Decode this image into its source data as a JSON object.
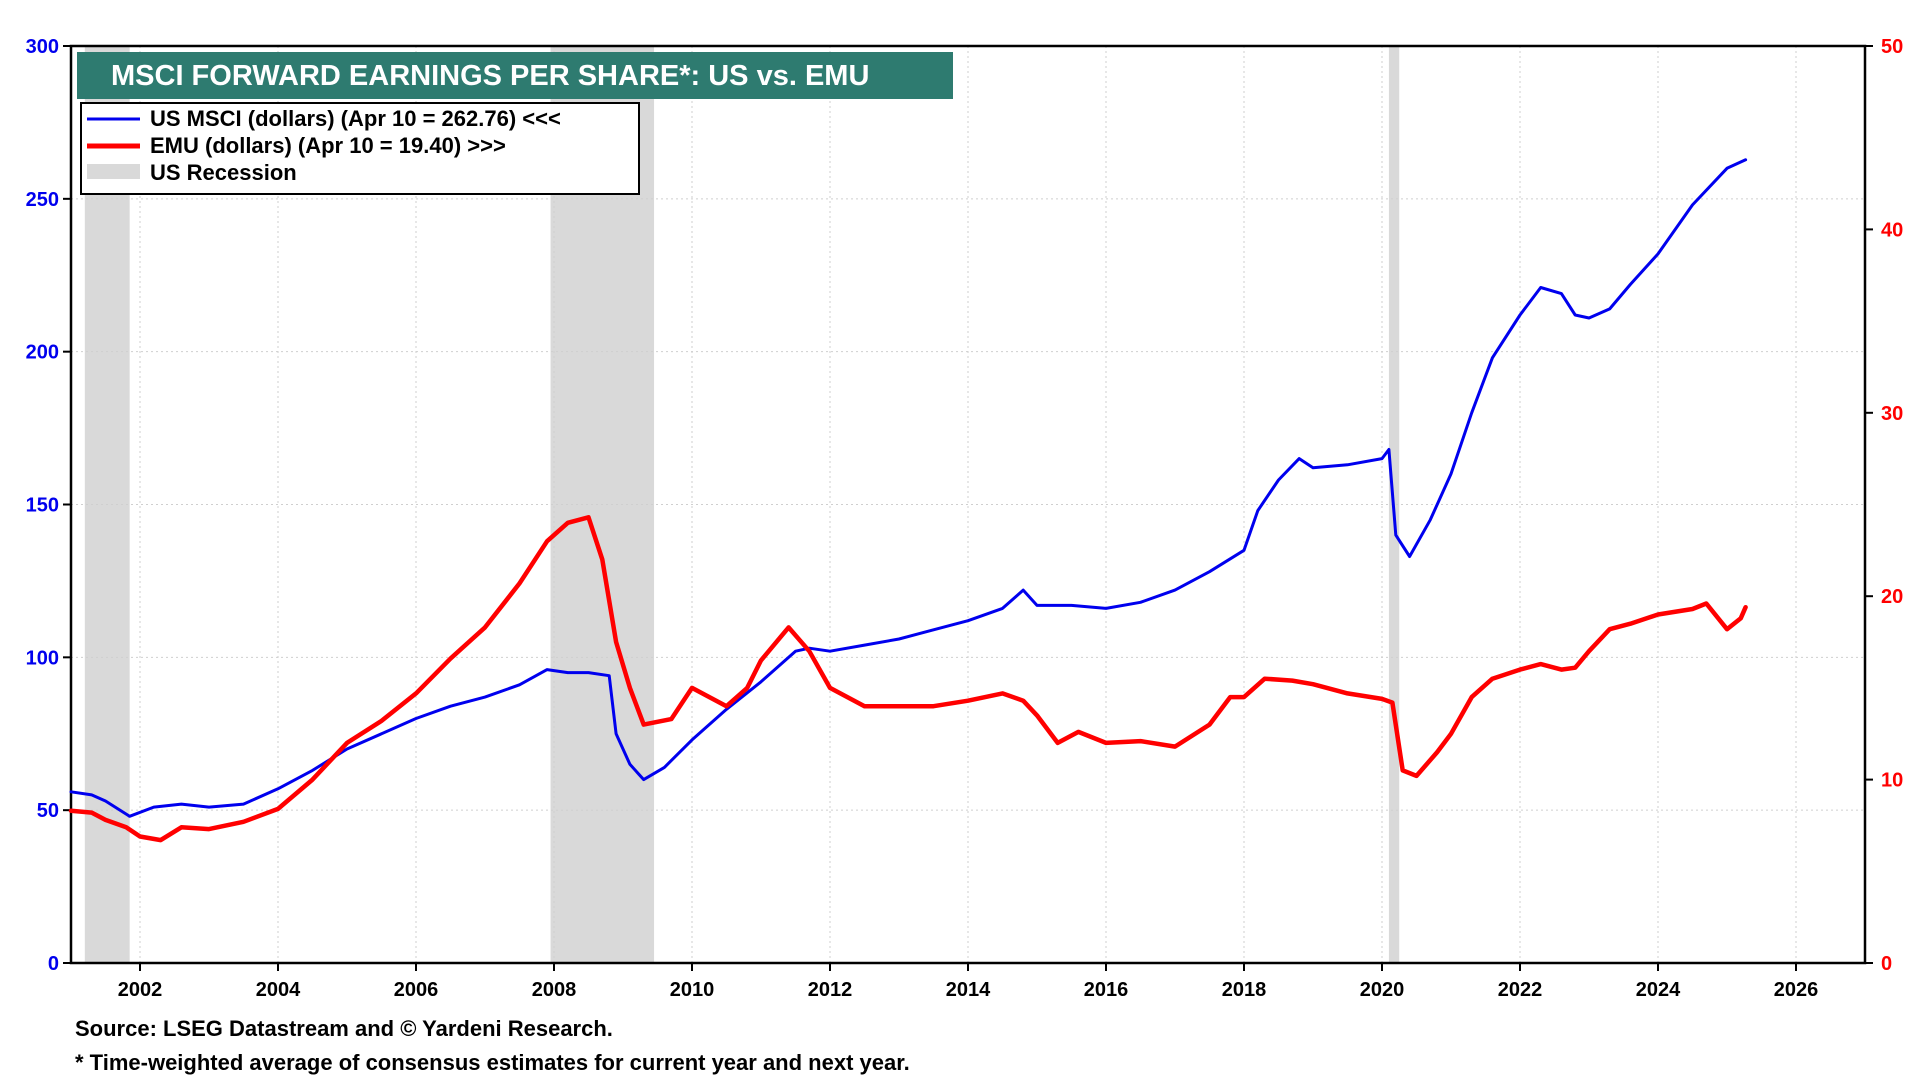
{
  "chart_data": {
    "type": "line",
    "title": "MSCI FORWARD EARNINGS PER SHARE*: US vs. EMU",
    "x_range": [
      2001.0,
      2027.0
    ],
    "x_ticks": [
      2002,
      2004,
      2006,
      2008,
      2010,
      2012,
      2014,
      2016,
      2018,
      2020,
      2022,
      2024,
      2026
    ],
    "y_left": {
      "min": 0,
      "max": 300,
      "ticks": [
        0,
        50,
        100,
        150,
        200,
        250,
        300
      ],
      "color": "#0000ee"
    },
    "y_right": {
      "min": 0,
      "max": 50,
      "ticks": [
        0,
        10,
        20,
        30,
        40,
        50
      ],
      "color": "#ff0000"
    },
    "recessions": [
      [
        2001.2,
        2001.85
      ],
      [
        2007.95,
        2009.45
      ],
      [
        2020.1,
        2020.25
      ]
    ],
    "legend": [
      {
        "label": "US MSCI (dollars) (Apr 10 = 262.76) <<<",
        "kind": "line",
        "color": "#0000ee"
      },
      {
        "label": "EMU (dollars) (Apr 10 = 19.40) >>>",
        "kind": "line",
        "color": "#ff0000"
      },
      {
        "label": "US Recession",
        "kind": "box",
        "color": "#d9d9d9"
      }
    ],
    "series": [
      {
        "name": "US MSCI (dollars)",
        "axis": "left",
        "color": "#0000ee",
        "points": [
          [
            2001.0,
            56
          ],
          [
            2001.3,
            55
          ],
          [
            2001.5,
            53
          ],
          [
            2001.85,
            48
          ],
          [
            2002.2,
            51
          ],
          [
            2002.6,
            52
          ],
          [
            2003.0,
            51
          ],
          [
            2003.5,
            52
          ],
          [
            2004.0,
            57
          ],
          [
            2004.5,
            63
          ],
          [
            2005.0,
            70
          ],
          [
            2005.5,
            75
          ],
          [
            2006.0,
            80
          ],
          [
            2006.5,
            84
          ],
          [
            2007.0,
            87
          ],
          [
            2007.5,
            91
          ],
          [
            2007.9,
            96
          ],
          [
            2008.2,
            95
          ],
          [
            2008.5,
            95
          ],
          [
            2008.8,
            94
          ],
          [
            2008.9,
            75
          ],
          [
            2009.1,
            65
          ],
          [
            2009.3,
            60
          ],
          [
            2009.6,
            64
          ],
          [
            2010.0,
            73
          ],
          [
            2010.5,
            83
          ],
          [
            2011.0,
            92
          ],
          [
            2011.5,
            102
          ],
          [
            2011.7,
            103
          ],
          [
            2012.0,
            102
          ],
          [
            2012.5,
            104
          ],
          [
            2013.0,
            106
          ],
          [
            2013.5,
            109
          ],
          [
            2014.0,
            112
          ],
          [
            2014.5,
            116
          ],
          [
            2014.8,
            122
          ],
          [
            2015.0,
            117
          ],
          [
            2015.5,
            117
          ],
          [
            2016.0,
            116
          ],
          [
            2016.5,
            118
          ],
          [
            2017.0,
            122
          ],
          [
            2017.5,
            128
          ],
          [
            2018.0,
            135
          ],
          [
            2018.2,
            148
          ],
          [
            2018.5,
            158
          ],
          [
            2018.8,
            165
          ],
          [
            2019.0,
            162
          ],
          [
            2019.5,
            163
          ],
          [
            2020.0,
            165
          ],
          [
            2020.1,
            168
          ],
          [
            2020.2,
            140
          ],
          [
            2020.4,
            133
          ],
          [
            2020.7,
            145
          ],
          [
            2021.0,
            160
          ],
          [
            2021.3,
            180
          ],
          [
            2021.6,
            198
          ],
          [
            2022.0,
            212
          ],
          [
            2022.3,
            221
          ],
          [
            2022.6,
            219
          ],
          [
            2022.8,
            212
          ],
          [
            2023.0,
            211
          ],
          [
            2023.3,
            214
          ],
          [
            2023.6,
            222
          ],
          [
            2024.0,
            232
          ],
          [
            2024.5,
            248
          ],
          [
            2025.0,
            260
          ],
          [
            2025.27,
            262.76
          ]
        ]
      },
      {
        "name": "EMU (dollars)",
        "axis": "right",
        "color": "#ff0000",
        "points": [
          [
            2001.0,
            8.3
          ],
          [
            2001.3,
            8.2
          ],
          [
            2001.5,
            7.8
          ],
          [
            2001.8,
            7.4
          ],
          [
            2002.0,
            6.9
          ],
          [
            2002.3,
            6.7
          ],
          [
            2002.6,
            7.4
          ],
          [
            2003.0,
            7.3
          ],
          [
            2003.5,
            7.7
          ],
          [
            2004.0,
            8.4
          ],
          [
            2004.5,
            10.0
          ],
          [
            2005.0,
            12.0
          ],
          [
            2005.5,
            13.2
          ],
          [
            2006.0,
            14.7
          ],
          [
            2006.5,
            16.6
          ],
          [
            2007.0,
            18.3
          ],
          [
            2007.5,
            20.7
          ],
          [
            2007.9,
            23.0
          ],
          [
            2008.2,
            24.0
          ],
          [
            2008.5,
            24.3
          ],
          [
            2008.7,
            22.0
          ],
          [
            2008.9,
            17.5
          ],
          [
            2009.1,
            15.0
          ],
          [
            2009.3,
            13.0
          ],
          [
            2009.7,
            13.3
          ],
          [
            2010.0,
            15.0
          ],
          [
            2010.5,
            14.0
          ],
          [
            2010.8,
            15.0
          ],
          [
            2011.0,
            16.5
          ],
          [
            2011.4,
            18.3
          ],
          [
            2011.7,
            17.0
          ],
          [
            2012.0,
            15.0
          ],
          [
            2012.5,
            14.0
          ],
          [
            2013.0,
            14.0
          ],
          [
            2013.5,
            14.0
          ],
          [
            2014.0,
            14.3
          ],
          [
            2014.5,
            14.7
          ],
          [
            2014.8,
            14.3
          ],
          [
            2015.0,
            13.5
          ],
          [
            2015.3,
            12.0
          ],
          [
            2015.6,
            12.6
          ],
          [
            2016.0,
            12.0
          ],
          [
            2016.5,
            12.1
          ],
          [
            2017.0,
            11.8
          ],
          [
            2017.5,
            13.0
          ],
          [
            2017.8,
            14.5
          ],
          [
            2018.0,
            14.5
          ],
          [
            2018.3,
            15.5
          ],
          [
            2018.7,
            15.4
          ],
          [
            2019.0,
            15.2
          ],
          [
            2019.5,
            14.7
          ],
          [
            2020.0,
            14.4
          ],
          [
            2020.15,
            14.2
          ],
          [
            2020.3,
            10.5
          ],
          [
            2020.5,
            10.2
          ],
          [
            2020.8,
            11.5
          ],
          [
            2021.0,
            12.5
          ],
          [
            2021.3,
            14.5
          ],
          [
            2021.6,
            15.5
          ],
          [
            2022.0,
            16.0
          ],
          [
            2022.3,
            16.3
          ],
          [
            2022.6,
            16.0
          ],
          [
            2022.8,
            16.1
          ],
          [
            2023.0,
            17.0
          ],
          [
            2023.3,
            18.2
          ],
          [
            2023.6,
            18.5
          ],
          [
            2024.0,
            19.0
          ],
          [
            2024.5,
            19.3
          ],
          [
            2024.7,
            19.6
          ],
          [
            2025.0,
            18.2
          ],
          [
            2025.2,
            18.8
          ],
          [
            2025.27,
            19.4
          ]
        ]
      }
    ],
    "source": "Source: LSEG Datastream and © Yardeni Research.",
    "footnote": "* Time-weighted average of consensus estimates for current year and next year."
  }
}
